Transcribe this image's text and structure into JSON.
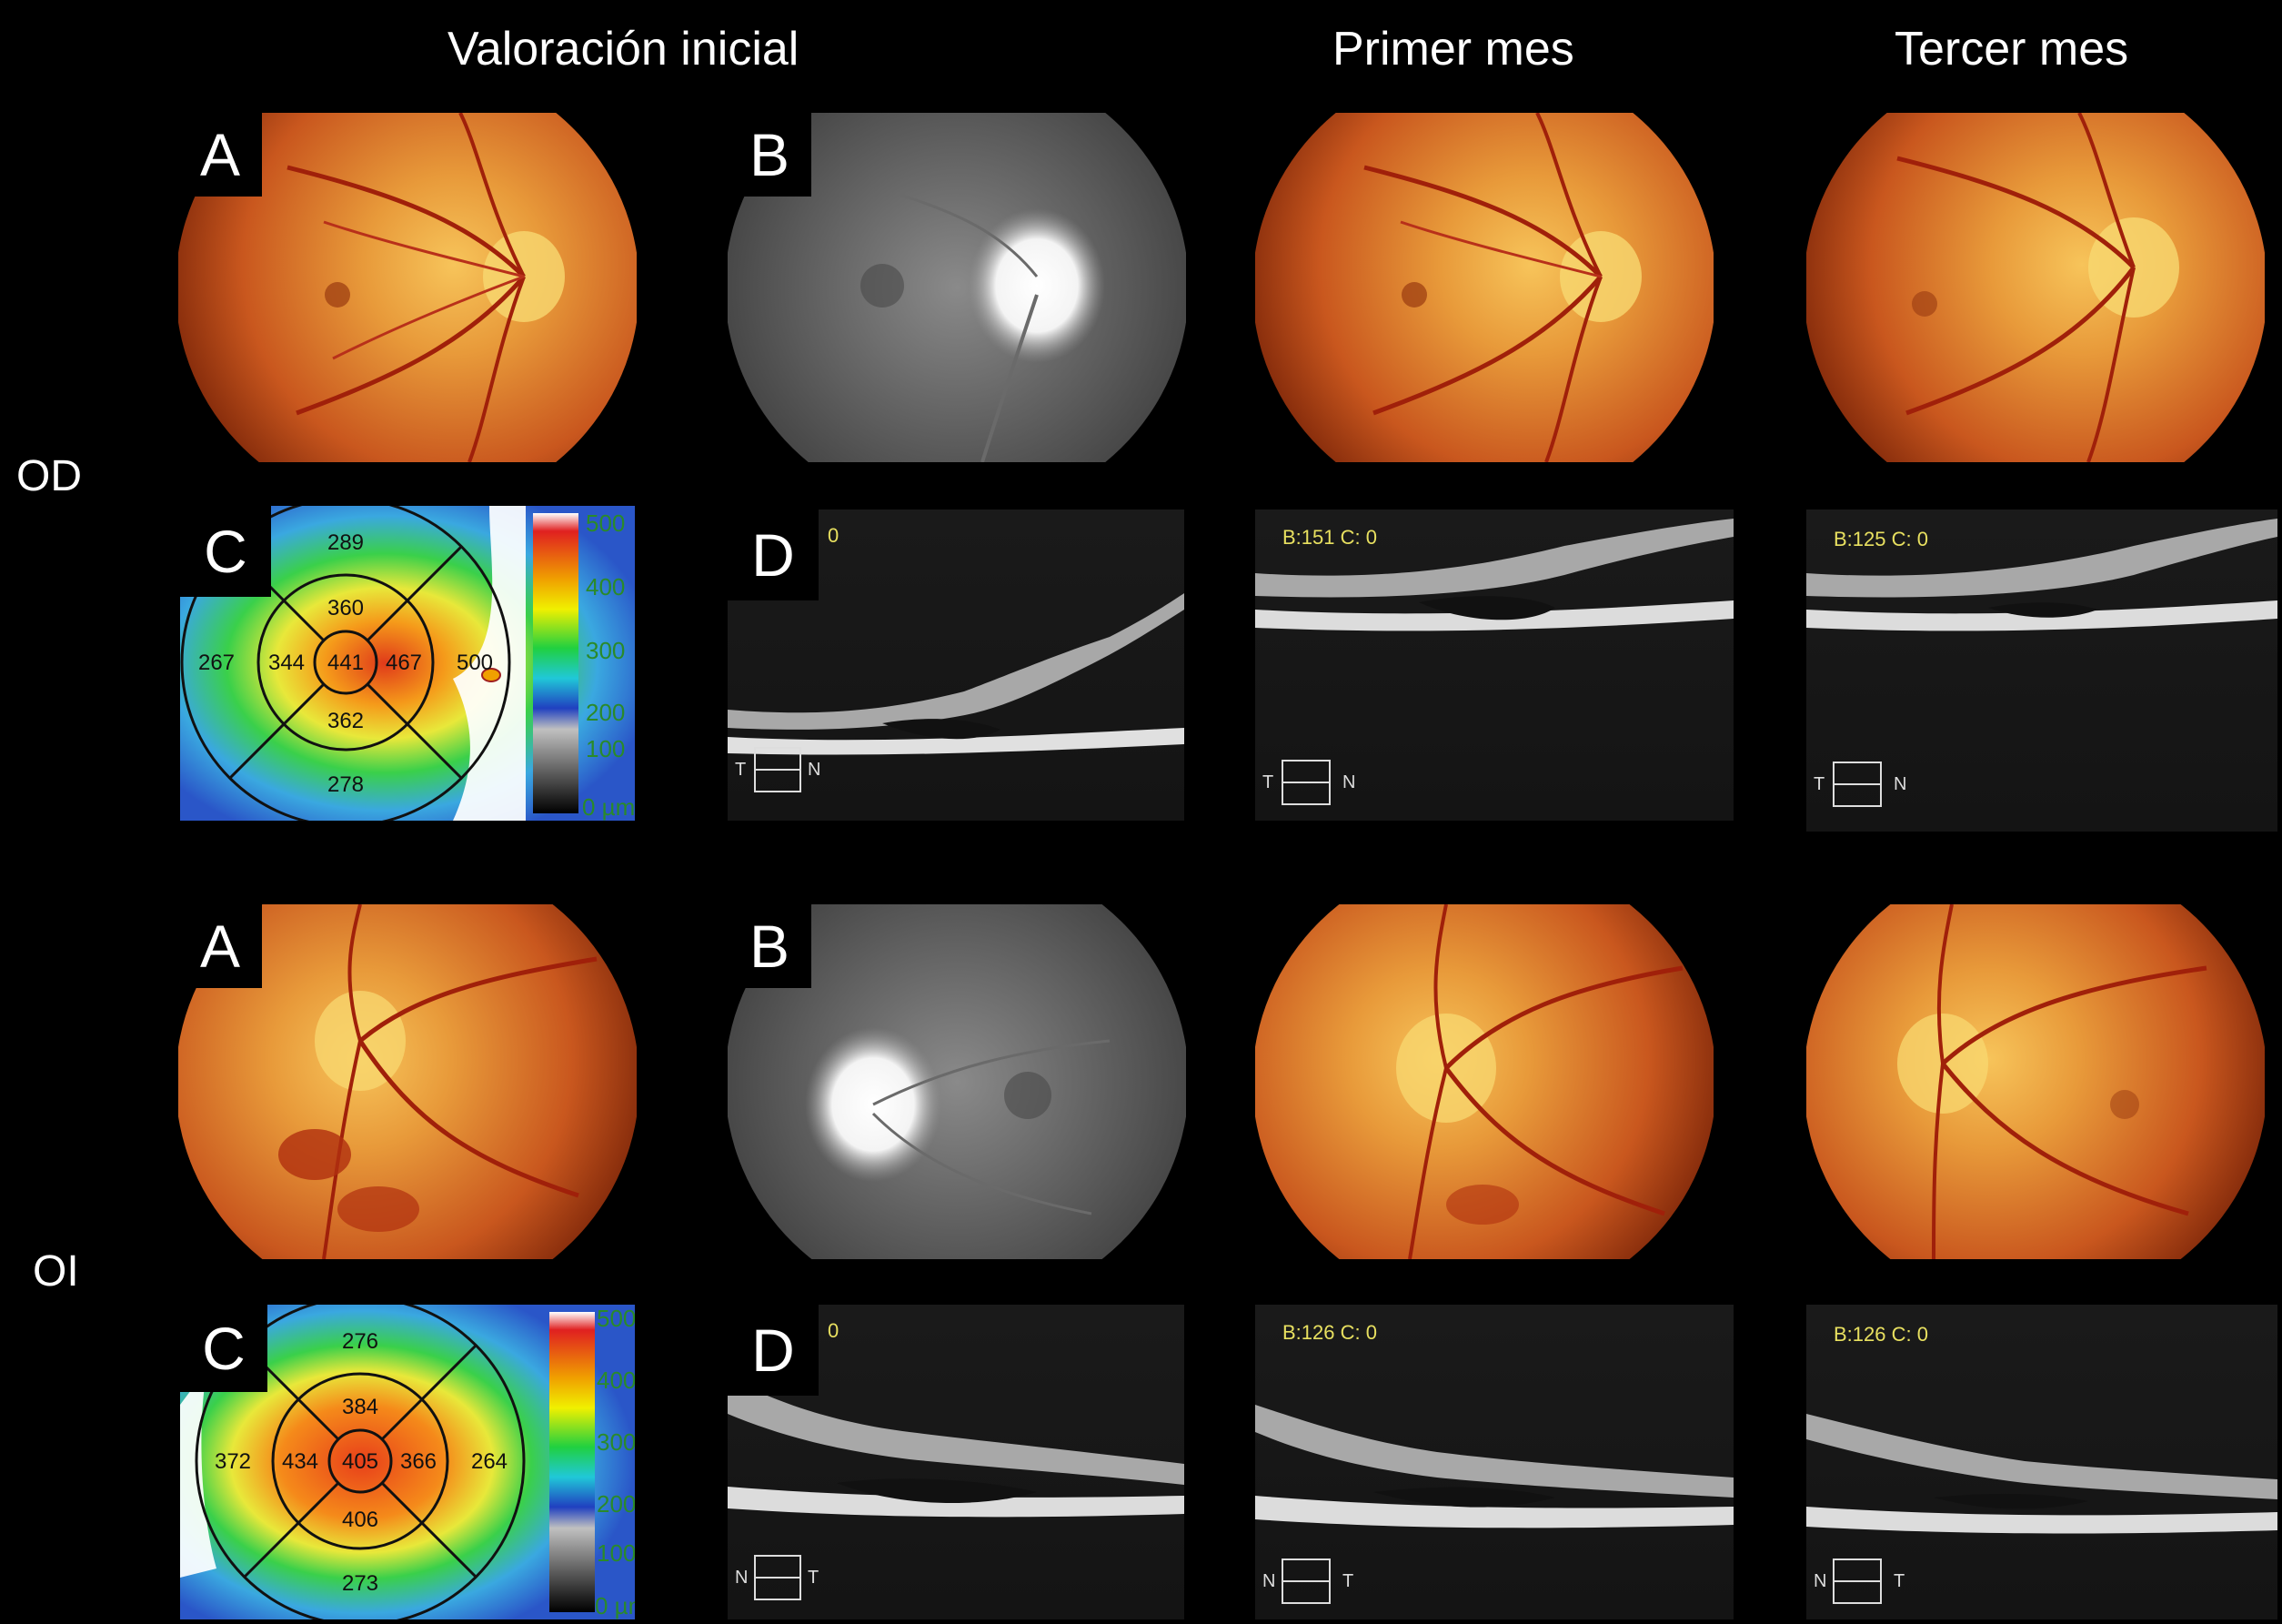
{
  "headers": {
    "col1": "Valoración inicial",
    "col2": "Primer mes",
    "col3": "Tercer mes"
  },
  "eyes": {
    "od": "OD",
    "oi": "OI"
  },
  "panel_letters": {
    "a": "A",
    "b": "B",
    "c": "C",
    "d": "D"
  },
  "od": {
    "map": {
      "superior_outer": "289",
      "superior_inner": "360",
      "temporal_outer": "267",
      "temporal_inner": "344",
      "center": "441",
      "nasal_inner": "467",
      "nasal_outer": "500",
      "inferior_inner": "362",
      "inferior_outer": "278"
    },
    "oct_initial_code": "0",
    "oct_m1_code": "B:151 C: 0",
    "oct_m3_code": "B:125 C: 0",
    "orient_left": "T",
    "orient_right": "N"
  },
  "oi": {
    "map": {
      "superior_outer": "276",
      "superior_inner": "384",
      "temporal_outer": "372",
      "temporal_inner": "434",
      "center": "405",
      "nasal_inner": "366",
      "nasal_outer": "264",
      "inferior_inner": "406",
      "inferior_outer": "273"
    },
    "oct_initial_code": "0",
    "oct_m1_code": "B:126 C: 0",
    "oct_m3_code": "B:126 C: 0",
    "orient_left": "N",
    "orient_right": "T"
  },
  "scale": {
    "s500": "500",
    "s400": "400",
    "s300": "300",
    "s200": "200",
    "s100": "100",
    "s0": "0 µm"
  }
}
